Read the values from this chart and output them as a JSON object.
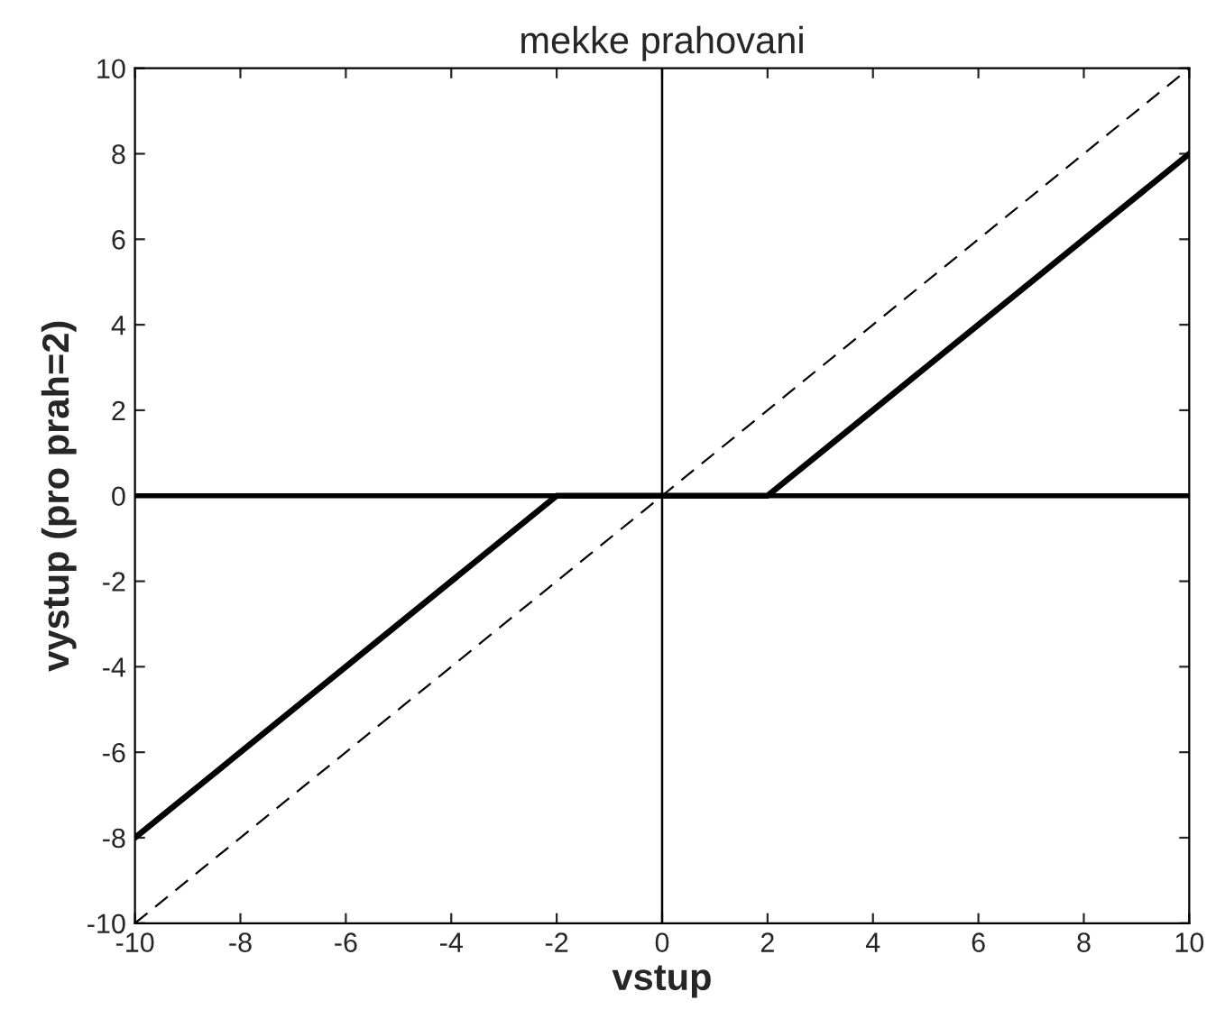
{
  "chart_data": {
    "type": "line",
    "title": "mekke prahovani",
    "xlabel": "vstup",
    "ylabel": "vystup (pro prah=2)",
    "series": [
      {
        "color": "#000000",
        "x": [
          0,
          0
        ],
        "values": [
          -10,
          10
        ],
        "line_style": "solid"
      },
      {
        "color": "#000000",
        "x": [
          -10,
          10
        ],
        "values": [
          0,
          0
        ],
        "line_style": "solid"
      },
      {
        "color": "#000000",
        "x": [
          -10,
          -2,
          2,
          10
        ],
        "values": [
          -8,
          0,
          0,
          8
        ],
        "line_style": "solid"
      },
      {
        "color": "#000000",
        "x": [
          -10,
          10
        ],
        "values": [
          -10,
          10
        ],
        "line_style": "dashed"
      }
    ],
    "xlim": [
      -10,
      10
    ],
    "ylim": [
      -10,
      10
    ],
    "xticks": [
      -10,
      -8,
      -6,
      -4,
      -2,
      0,
      2,
      4,
      6,
      8,
      10
    ],
    "yticks": [
      -10,
      -8,
      -6,
      -4,
      -2,
      0,
      2,
      4,
      6,
      8,
      10
    ],
    "grid": false,
    "legend": false,
    "marker": "none"
  }
}
